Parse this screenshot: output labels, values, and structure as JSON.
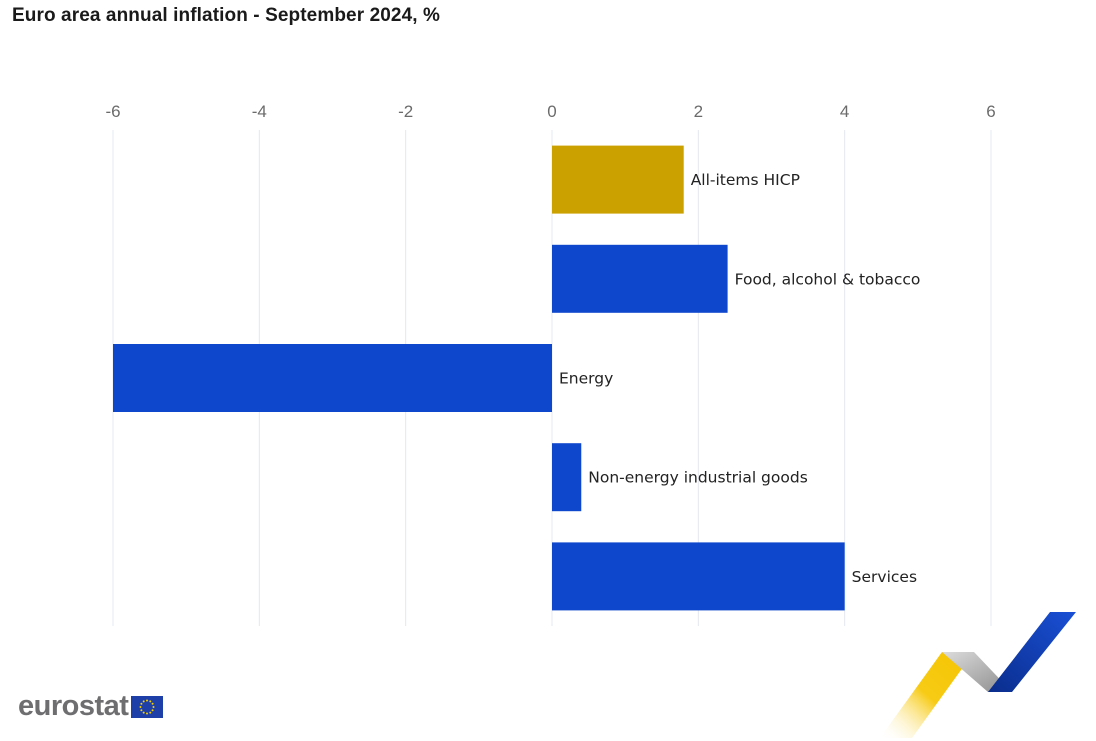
{
  "title": "Euro area annual inflation - September 2024, %",
  "brand": {
    "name": "eurostat",
    "logo_icon": "eu-flag-icon"
  },
  "colors": {
    "highlight": "#CBA100",
    "default": "#0E47CB",
    "grid": "#E3E8F0"
  },
  "chart_data": {
    "type": "bar",
    "orientation": "horizontal",
    "categories": [
      "All-items HICP",
      "Food, alcohol & tobacco",
      "Energy",
      "Non-energy industrial goods",
      "Services"
    ],
    "values": [
      1.8,
      2.4,
      -6.0,
      0.4,
      4.0
    ],
    "bar_colors": [
      "#CBA100",
      "#0E47CB",
      "#0E47CB",
      "#0E47CB",
      "#0E47CB"
    ],
    "xlim": [
      -6,
      6
    ],
    "x_ticks": [
      -6,
      -4,
      -2,
      0,
      2,
      4,
      6
    ],
    "x_axis_position": "top",
    "grid": "vertical",
    "title": "Euro area annual inflation - September 2024, %",
    "xlabel": "",
    "ylabel": ""
  }
}
